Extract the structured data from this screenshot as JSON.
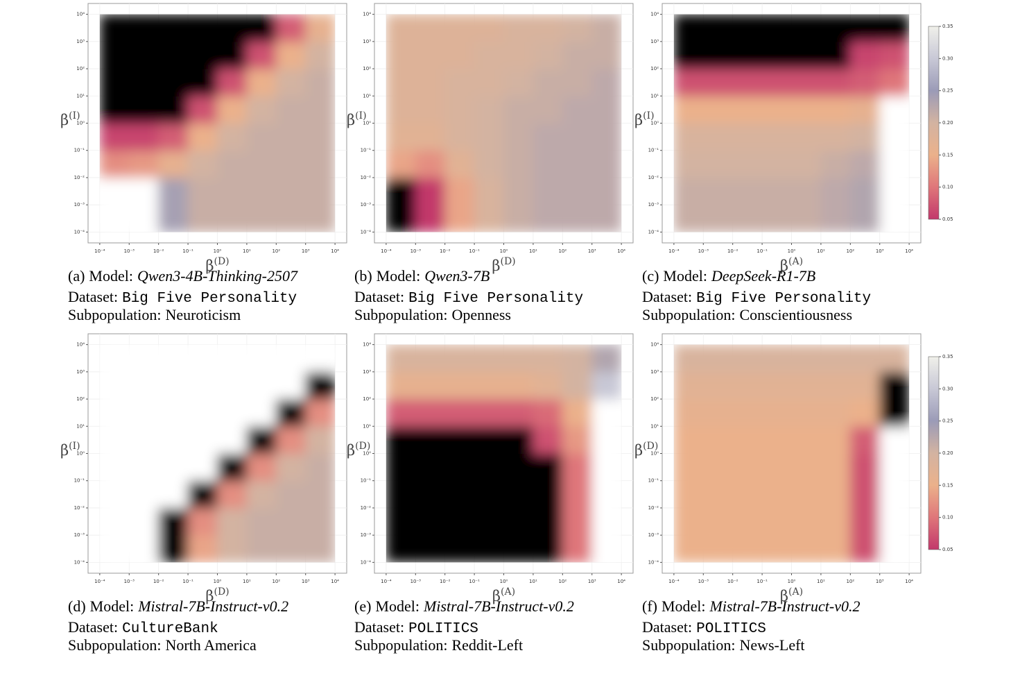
{
  "chart_data": [
    {
      "type": "heatmap",
      "xlabel": {
        "base": "β",
        "sup": "(D)"
      },
      "ylabel": {
        "base": "β",
        "sup": "(I)"
      },
      "xlim": [
        4e-05,
        25000
      ],
      "ylim": [
        4e-05,
        25000
      ],
      "xticks": [
        {
          "value": 0.0001,
          "label": "10⁻⁴"
        },
        {
          "value": 0.001,
          "label": "10⁻³"
        },
        {
          "value": 0.01,
          "label": "10⁻²"
        },
        {
          "value": 0.1,
          "label": "10⁻¹"
        },
        {
          "value": 1,
          "label": "10⁰"
        },
        {
          "value": 10,
          "label": "10¹"
        },
        {
          "value": 100,
          "label": "10²"
        },
        {
          "value": 1000,
          "label": "10³"
        },
        {
          "value": 10000,
          "label": "10⁴"
        }
      ],
      "yticks": [
        {
          "value": 0.0001,
          "label": "10⁻⁴"
        },
        {
          "value": 0.001,
          "label": "10⁻³"
        },
        {
          "value": 0.01,
          "label": "10⁻²"
        },
        {
          "value": 0.1,
          "label": "10⁻¹"
        },
        {
          "value": 1,
          "label": "10⁰"
        },
        {
          "value": 10,
          "label": "10¹"
        },
        {
          "value": 100,
          "label": "10²"
        },
        {
          "value": 1000,
          "label": "10³"
        },
        {
          "value": 10000,
          "label": "10⁴"
        }
      ],
      "z": [
        [
          0.4,
          0.38,
          0.24,
          0.21,
          0.21,
          0.21,
          0.21,
          0.21
        ],
        [
          0.4,
          0.38,
          0.24,
          0.21,
          0.21,
          0.21,
          0.21,
          0.21
        ],
        [
          0.12,
          0.13,
          0.16,
          0.2,
          0.21,
          0.21,
          0.21,
          0.21
        ],
        [
          0.06,
          0.06,
          0.08,
          0.15,
          0.2,
          0.21,
          0.21,
          0.21
        ],
        [
          0.02,
          0.02,
          0.02,
          0.07,
          0.15,
          0.2,
          0.21,
          0.21
        ],
        [
          0.02,
          0.02,
          0.02,
          0.02,
          0.07,
          0.15,
          0.2,
          0.21
        ],
        [
          0.02,
          0.02,
          0.02,
          0.02,
          0.02,
          0.07,
          0.15,
          0.2
        ],
        [
          0.02,
          0.02,
          0.02,
          0.02,
          0.02,
          0.02,
          0.08,
          0.16
        ]
      ],
      "caption": {
        "tag": "(a)",
        "model_label": "Model:",
        "model": "Qwen3-4B-Thinking-2507",
        "dataset_label": "Dataset:",
        "dataset": "Big Five Personality",
        "subpop_label": "Subpopulation:",
        "subpop": "Neuroticism"
      }
    },
    {
      "type": "heatmap",
      "xlabel": {
        "base": "β",
        "sup": "(D)"
      },
      "ylabel": {
        "base": "β",
        "sup": "(I)"
      },
      "xlim": [
        4e-05,
        25000
      ],
      "ylim": [
        4e-05,
        25000
      ],
      "xticks": [
        {
          "value": 0.0001,
          "label": "10⁻⁴"
        },
        {
          "value": 0.001,
          "label": "10⁻³"
        },
        {
          "value": 0.01,
          "label": "10⁻²"
        },
        {
          "value": 0.1,
          "label": "10⁻¹"
        },
        {
          "value": 1,
          "label": "10⁰"
        },
        {
          "value": 10,
          "label": "10¹"
        },
        {
          "value": 100,
          "label": "10²"
        },
        {
          "value": 1000,
          "label": "10³"
        },
        {
          "value": 10000,
          "label": "10⁴"
        }
      ],
      "yticks": [
        {
          "value": 0.0001,
          "label": "10⁻⁴"
        },
        {
          "value": 0.001,
          "label": "10⁻³"
        },
        {
          "value": 0.01,
          "label": "10⁻²"
        },
        {
          "value": 0.1,
          "label": "10⁻¹"
        },
        {
          "value": 1,
          "label": "10⁰"
        },
        {
          "value": 10,
          "label": "10¹"
        },
        {
          "value": 100,
          "label": "10²"
        },
        {
          "value": 1000,
          "label": "10³"
        },
        {
          "value": 10000,
          "label": "10⁴"
        }
      ],
      "z": [
        [
          0.02,
          0.05,
          0.14,
          0.19,
          0.21,
          0.22,
          0.22,
          0.22
        ],
        [
          0.02,
          0.05,
          0.14,
          0.19,
          0.21,
          0.22,
          0.22,
          0.22
        ],
        [
          0.14,
          0.12,
          0.17,
          0.2,
          0.21,
          0.22,
          0.22,
          0.22
        ],
        [
          0.17,
          0.17,
          0.19,
          0.2,
          0.21,
          0.22,
          0.22,
          0.22
        ],
        [
          0.18,
          0.18,
          0.19,
          0.2,
          0.21,
          0.21,
          0.22,
          0.22
        ],
        [
          0.18,
          0.18,
          0.19,
          0.19,
          0.2,
          0.21,
          0.21,
          0.22
        ],
        [
          0.18,
          0.18,
          0.18,
          0.19,
          0.19,
          0.2,
          0.21,
          0.21
        ],
        [
          0.18,
          0.18,
          0.18,
          0.18,
          0.19,
          0.19,
          0.2,
          0.21
        ]
      ],
      "caption": {
        "tag": "(b)",
        "model_label": "Model:",
        "model": "Qwen3-7B",
        "dataset_label": "Dataset:",
        "dataset": "Big Five Personality",
        "subpop_label": "Subpopulation:",
        "subpop": "Openness"
      }
    },
    {
      "type": "heatmap",
      "xlabel": {
        "base": "β",
        "sup": "(A)"
      },
      "ylabel": {
        "base": "β",
        "sup": "(I)"
      },
      "xlim": [
        4e-05,
        25000
      ],
      "ylim": [
        4e-05,
        25000
      ],
      "xticks": [
        {
          "value": 0.0001,
          "label": "10⁻⁴"
        },
        {
          "value": 0.001,
          "label": "10⁻³"
        },
        {
          "value": 0.01,
          "label": "10⁻²"
        },
        {
          "value": 0.1,
          "label": "10⁻¹"
        },
        {
          "value": 1,
          "label": "10⁰"
        },
        {
          "value": 10,
          "label": "10¹"
        },
        {
          "value": 100,
          "label": "10²"
        },
        {
          "value": 1000,
          "label": "10³"
        },
        {
          "value": 10000,
          "label": "10⁴"
        }
      ],
      "yticks": [
        {
          "value": 0.0001,
          "label": "10⁻⁴"
        },
        {
          "value": 0.001,
          "label": "10⁻³"
        },
        {
          "value": 0.01,
          "label": "10⁻²"
        },
        {
          "value": 0.1,
          "label": "10⁻¹"
        },
        {
          "value": 1,
          "label": "10⁰"
        },
        {
          "value": 10,
          "label": "10¹"
        },
        {
          "value": 100,
          "label": "10²"
        },
        {
          "value": 1000,
          "label": "10³"
        },
        {
          "value": 10000,
          "label": "10⁴"
        }
      ],
      "z": [
        [
          0.21,
          0.21,
          0.21,
          0.21,
          0.21,
          0.22,
          0.23,
          0.4
        ],
        [
          0.21,
          0.21,
          0.21,
          0.21,
          0.21,
          0.22,
          0.23,
          0.4
        ],
        [
          0.2,
          0.2,
          0.2,
          0.2,
          0.2,
          0.21,
          0.22,
          0.4
        ],
        [
          0.19,
          0.19,
          0.19,
          0.19,
          0.19,
          0.19,
          0.2,
          0.4
        ],
        [
          0.15,
          0.15,
          0.15,
          0.15,
          0.15,
          0.15,
          0.16,
          0.4
        ],
        [
          0.07,
          0.07,
          0.07,
          0.07,
          0.07,
          0.07,
          0.08,
          0.1
        ],
        [
          0.02,
          0.02,
          0.02,
          0.02,
          0.02,
          0.02,
          0.06,
          0.07
        ],
        [
          0.02,
          0.02,
          0.02,
          0.02,
          0.02,
          0.02,
          0.02,
          0.02
        ]
      ],
      "colorbar": {
        "ticks": [
          0.05,
          {
            "value": 0.1,
            "label": "0.10"
          },
          0.15,
          {
            "value": 0.2,
            "label": "0.20"
          },
          0.25,
          {
            "value": 0.3,
            "label": "0.30"
          },
          0.35
        ]
      },
      "caption": {
        "tag": "(c)",
        "model_label": "Model:",
        "model": "DeepSeek-R1-7B",
        "dataset_label": "Dataset:",
        "dataset": "Big Five Personality",
        "subpop_label": "Subpopulation:",
        "subpop": "Conscientiousness"
      }
    },
    {
      "type": "heatmap",
      "xlabel": {
        "base": "β",
        "sup": "(D)"
      },
      "ylabel": {
        "base": "β",
        "sup": "(I)"
      },
      "xlim": [
        4e-05,
        25000
      ],
      "ylim": [
        4e-05,
        25000
      ],
      "xticks": [
        {
          "value": 0.0001,
          "label": "10⁻⁴"
        },
        {
          "value": 0.001,
          "label": "10⁻³"
        },
        {
          "value": 0.01,
          "label": "10⁻²"
        },
        {
          "value": 0.1,
          "label": "10⁻¹"
        },
        {
          "value": 1,
          "label": "10⁰"
        },
        {
          "value": 10,
          "label": "10¹"
        },
        {
          "value": 100,
          "label": "10²"
        },
        {
          "value": 1000,
          "label": "10³"
        },
        {
          "value": 10000,
          "label": "10⁴"
        }
      ],
      "yticks": [
        {
          "value": 0.0001,
          "label": "10⁻⁴"
        },
        {
          "value": 0.001,
          "label": "10⁻³"
        },
        {
          "value": 0.01,
          "label": "10⁻²"
        },
        {
          "value": 0.1,
          "label": "10⁻¹"
        },
        {
          "value": 1,
          "label": "10⁰"
        },
        {
          "value": 10,
          "label": "10¹"
        },
        {
          "value": 100,
          "label": "10²"
        },
        {
          "value": 1000,
          "label": "10³"
        },
        {
          "value": 10000,
          "label": "10⁴"
        }
      ],
      "z": [
        [
          0.4,
          0.4,
          0.02,
          0.14,
          0.2,
          0.21,
          0.21,
          0.21
        ],
        [
          0.4,
          0.4,
          0.02,
          0.12,
          0.2,
          0.21,
          0.21,
          0.21
        ],
        [
          0.4,
          0.4,
          0.4,
          0.02,
          0.12,
          0.2,
          0.21,
          0.21
        ],
        [
          0.4,
          0.4,
          0.4,
          0.4,
          0.02,
          0.12,
          0.2,
          0.21
        ],
        [
          0.4,
          0.4,
          0.4,
          0.4,
          0.4,
          0.02,
          0.12,
          0.2
        ],
        [
          0.4,
          0.4,
          0.4,
          0.4,
          0.4,
          0.4,
          0.02,
          0.12
        ],
        [
          0.4,
          0.4,
          0.4,
          0.4,
          0.4,
          0.4,
          0.4,
          0.02
        ],
        [
          0.4,
          0.4,
          0.4,
          0.4,
          0.4,
          0.4,
          0.4,
          0.4
        ]
      ],
      "caption": {
        "tag": "(d)",
        "model_label": "Model:",
        "model": "Mistral-7B-Instruct-v0.2",
        "dataset_label": "Dataset:",
        "dataset": "CultureBank",
        "subpop_label": "Subpopulation:",
        "subpop": "North America"
      }
    },
    {
      "type": "heatmap",
      "xlabel": {
        "base": "β",
        "sup": "(A)"
      },
      "ylabel": {
        "base": "β",
        "sup": "(D)"
      },
      "xlim": [
        4e-05,
        25000
      ],
      "ylim": [
        4e-05,
        25000
      ],
      "xticks": [
        {
          "value": 0.0001,
          "label": "10⁻⁴"
        },
        {
          "value": 0.001,
          "label": "10⁻³"
        },
        {
          "value": 0.01,
          "label": "10⁻²"
        },
        {
          "value": 0.1,
          "label": "10⁻¹"
        },
        {
          "value": 1,
          "label": "10⁰"
        },
        {
          "value": 10,
          "label": "10¹"
        },
        {
          "value": 100,
          "label": "10²"
        },
        {
          "value": 1000,
          "label": "10³"
        },
        {
          "value": 10000,
          "label": "10⁴"
        }
      ],
      "yticks": [
        {
          "value": 0.0001,
          "label": "10⁻⁴"
        },
        {
          "value": 0.001,
          "label": "10⁻³"
        },
        {
          "value": 0.01,
          "label": "10⁻²"
        },
        {
          "value": 0.1,
          "label": "10⁻¹"
        },
        {
          "value": 1,
          "label": "10⁰"
        },
        {
          "value": 10,
          "label": "10¹"
        },
        {
          "value": 100,
          "label": "10²"
        },
        {
          "value": 1000,
          "label": "10³"
        },
        {
          "value": 10000,
          "label": "10⁴"
        }
      ],
      "z": [
        [
          0.02,
          0.02,
          0.02,
          0.02,
          0.02,
          0.02,
          0.1,
          0.4
        ],
        [
          0.02,
          0.02,
          0.02,
          0.02,
          0.02,
          0.02,
          0.1,
          0.4
        ],
        [
          0.02,
          0.02,
          0.02,
          0.02,
          0.02,
          0.02,
          0.1,
          0.4
        ],
        [
          0.02,
          0.02,
          0.02,
          0.02,
          0.02,
          0.02,
          0.1,
          0.4
        ],
        [
          0.02,
          0.02,
          0.02,
          0.02,
          0.02,
          0.07,
          0.13,
          0.4
        ],
        [
          0.08,
          0.08,
          0.08,
          0.08,
          0.08,
          0.09,
          0.15,
          0.4
        ],
        [
          0.16,
          0.16,
          0.16,
          0.16,
          0.16,
          0.17,
          0.2,
          0.3
        ],
        [
          0.19,
          0.19,
          0.19,
          0.19,
          0.19,
          0.19,
          0.2,
          0.23
        ]
      ],
      "caption": {
        "tag": "(e)",
        "model_label": "Model:",
        "model": "Mistral-7B-Instruct-v0.2",
        "dataset_label": "Dataset:",
        "dataset": "POLITICS",
        "subpop_label": "Subpopulation:",
        "subpop": "Reddit-Left"
      }
    },
    {
      "type": "heatmap",
      "xlabel": {
        "base": "β",
        "sup": "(A)"
      },
      "ylabel": {
        "base": "β",
        "sup": "(D)"
      },
      "xlim": [
        4e-05,
        25000
      ],
      "ylim": [
        4e-05,
        25000
      ],
      "xticks": [
        {
          "value": 0.0001,
          "label": "10⁻⁴"
        },
        {
          "value": 0.001,
          "label": "10⁻³"
        },
        {
          "value": 0.01,
          "label": "10⁻²"
        },
        {
          "value": 0.1,
          "label": "10⁻¹"
        },
        {
          "value": 1,
          "label": "10⁰"
        },
        {
          "value": 10,
          "label": "10¹"
        },
        {
          "value": 100,
          "label": "10²"
        },
        {
          "value": 1000,
          "label": "10³"
        },
        {
          "value": 10000,
          "label": "10⁴"
        }
      ],
      "yticks": [
        {
          "value": 0.0001,
          "label": "10⁻⁴"
        },
        {
          "value": 0.001,
          "label": "10⁻³"
        },
        {
          "value": 0.01,
          "label": "10⁻²"
        },
        {
          "value": 0.1,
          "label": "10⁻¹"
        },
        {
          "value": 1,
          "label": "10⁰"
        },
        {
          "value": 10,
          "label": "10¹"
        },
        {
          "value": 100,
          "label": "10²"
        },
        {
          "value": 1000,
          "label": "10³"
        },
        {
          "value": 10000,
          "label": "10⁴"
        }
      ],
      "z": [
        [
          0.15,
          0.15,
          0.15,
          0.15,
          0.15,
          0.15,
          0.07,
          0.4
        ],
        [
          0.15,
          0.15,
          0.15,
          0.15,
          0.15,
          0.15,
          0.07,
          0.4
        ],
        [
          0.15,
          0.15,
          0.15,
          0.15,
          0.15,
          0.15,
          0.07,
          0.4
        ],
        [
          0.15,
          0.15,
          0.15,
          0.15,
          0.15,
          0.15,
          0.07,
          0.4
        ],
        [
          0.15,
          0.15,
          0.15,
          0.15,
          0.15,
          0.15,
          0.08,
          0.4
        ],
        [
          0.16,
          0.16,
          0.16,
          0.16,
          0.16,
          0.16,
          0.15,
          0.02
        ],
        [
          0.17,
          0.17,
          0.17,
          0.17,
          0.17,
          0.17,
          0.17,
          0.02
        ],
        [
          0.19,
          0.19,
          0.19,
          0.19,
          0.19,
          0.19,
          0.19,
          0.19
        ]
      ],
      "colorbar": {
        "ticks": [
          0.05,
          {
            "value": 0.1,
            "label": "0.10"
          },
          0.15,
          {
            "value": 0.2,
            "label": "0.20"
          },
          0.25,
          {
            "value": 0.3,
            "label": "0.30"
          },
          0.35
        ]
      },
      "caption": {
        "tag": "(f)",
        "model_label": "Model:",
        "model": "Mistral-7B-Instruct-v0.2",
        "dataset_label": "Dataset:",
        "dataset": "POLITICS",
        "subpop_label": "Subpopulation:",
        "subpop": "News-Left"
      }
    }
  ],
  "colormap": {
    "vmin": 0.05,
    "vmax": 0.35,
    "stops": [
      "#c2386b",
      "#df767a",
      "#ebb18b",
      "#d3b3a1",
      "#9b9bb7",
      "#c8c8d6",
      "#f0f0ea"
    ],
    "under": "#000000",
    "over": "#ffffff"
  },
  "grid": true
}
